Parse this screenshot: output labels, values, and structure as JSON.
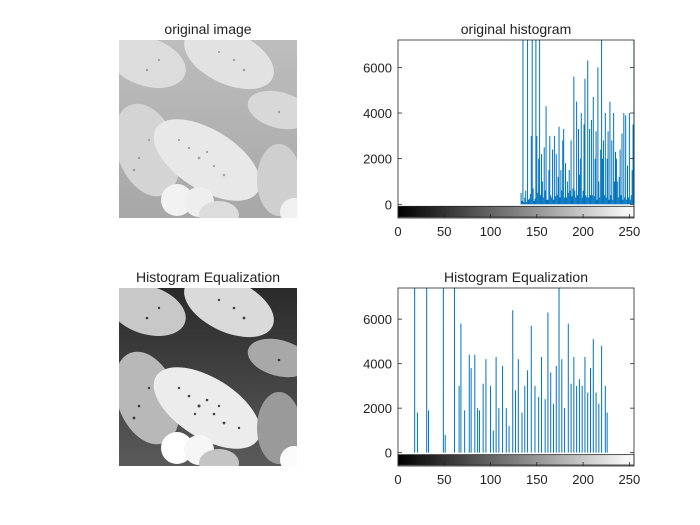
{
  "colors": {
    "background": "#ffffff",
    "histogram_line": "#0072bd",
    "axis": "#262626",
    "image_panel_top": "#b4b4b4",
    "image_panel_bottom": "#8a8a8a",
    "image_blob_top": "#dedede",
    "image_blob_bottom": "#eaeaea",
    "image_speck": "#3a3a3a"
  },
  "panels": {
    "original_image": {
      "title": "original image",
      "image": "pollen-grains-photo-low-contrast"
    },
    "equalized_image": {
      "title": "Histogram Equalization",
      "image": "pollen-grains-photo-equalized"
    }
  },
  "chart_data": [
    {
      "type": "bar",
      "title": "original histogram",
      "xlabel": "",
      "ylabel": "",
      "xlim": [
        0,
        255
      ],
      "ylim": [
        -600,
        7200
      ],
      "grid": false,
      "x_ticks": [
        0,
        50,
        100,
        150,
        200,
        250
      ],
      "y_ticks": [
        0,
        2000,
        4000,
        6000
      ],
      "colorbar": "grayscale 0-255 under x axis",
      "bins": [
        [
          133,
          500
        ],
        [
          134,
          150
        ],
        [
          135,
          7200
        ],
        [
          136,
          100
        ],
        [
          137,
          300
        ],
        [
          138,
          600
        ],
        [
          139,
          100
        ],
        [
          140,
          7200
        ],
        [
          141,
          200
        ],
        [
          142,
          250
        ],
        [
          143,
          450
        ],
        [
          144,
          3000
        ],
        [
          145,
          7200
        ],
        [
          146,
          700
        ],
        [
          147,
          150
        ],
        [
          148,
          250
        ],
        [
          149,
          7200
        ],
        [
          150,
          3000
        ],
        [
          151,
          500
        ],
        [
          152,
          2000
        ],
        [
          153,
          7200
        ],
        [
          154,
          400
        ],
        [
          155,
          2200
        ],
        [
          156,
          1000
        ],
        [
          157,
          300
        ],
        [
          158,
          2500
        ],
        [
          159,
          600
        ],
        [
          160,
          4300
        ],
        [
          161,
          200
        ],
        [
          162,
          200
        ],
        [
          163,
          1500
        ],
        [
          164,
          3000
        ],
        [
          165,
          400
        ],
        [
          166,
          300
        ],
        [
          167,
          2400
        ],
        [
          168,
          200
        ],
        [
          169,
          3000
        ],
        [
          170,
          350
        ],
        [
          171,
          2200
        ],
        [
          172,
          400
        ],
        [
          173,
          1200
        ],
        [
          174,
          3400
        ],
        [
          175,
          300
        ],
        [
          176,
          1500
        ],
        [
          177,
          600
        ],
        [
          178,
          2800
        ],
        [
          179,
          3300
        ],
        [
          180,
          300
        ],
        [
          181,
          1800
        ],
        [
          182,
          300
        ],
        [
          183,
          1000
        ],
        [
          184,
          500
        ],
        [
          185,
          1500
        ],
        [
          186,
          600
        ],
        [
          187,
          2800
        ],
        [
          188,
          350
        ],
        [
          189,
          700
        ],
        [
          190,
          5600
        ],
        [
          191,
          600
        ],
        [
          192,
          300
        ],
        [
          193,
          4500
        ],
        [
          194,
          400
        ],
        [
          195,
          3300
        ],
        [
          196,
          1300
        ],
        [
          197,
          2000
        ],
        [
          198,
          4000
        ],
        [
          199,
          300
        ],
        [
          200,
          600
        ],
        [
          201,
          3500
        ],
        [
          202,
          5500
        ],
        [
          203,
          400
        ],
        [
          204,
          300
        ],
        [
          205,
          6300
        ],
        [
          206,
          300
        ],
        [
          207,
          3300
        ],
        [
          208,
          400
        ],
        [
          209,
          3700
        ],
        [
          210,
          400
        ],
        [
          211,
          4700
        ],
        [
          212,
          350
        ],
        [
          213,
          2000
        ],
        [
          214,
          3200
        ],
        [
          215,
          200
        ],
        [
          216,
          6000
        ],
        [
          217,
          1000
        ],
        [
          218,
          300
        ],
        [
          219,
          2400
        ],
        [
          220,
          7200
        ],
        [
          221,
          2000
        ],
        [
          222,
          2800
        ],
        [
          223,
          400
        ],
        [
          224,
          4000
        ],
        [
          225,
          300
        ],
        [
          226,
          2000
        ],
        [
          227,
          3200
        ],
        [
          228,
          200
        ],
        [
          229,
          4500
        ],
        [
          230,
          400
        ],
        [
          231,
          2800
        ],
        [
          232,
          200
        ],
        [
          233,
          4000
        ],
        [
          234,
          1000
        ],
        [
          235,
          2300
        ],
        [
          236,
          2000
        ],
        [
          237,
          1000
        ],
        [
          238,
          300
        ],
        [
          239,
          1200
        ],
        [
          240,
          2400
        ],
        [
          241,
          400
        ],
        [
          242,
          3100
        ],
        [
          243,
          200
        ],
        [
          244,
          4000
        ],
        [
          245,
          300
        ],
        [
          246,
          3900
        ],
        [
          247,
          200
        ],
        [
          248,
          1700
        ],
        [
          249,
          300
        ],
        [
          250,
          4000
        ],
        [
          251,
          200
        ],
        [
          252,
          400
        ],
        [
          253,
          1500
        ],
        [
          254,
          3500
        ],
        [
          255,
          7200
        ]
      ]
    },
    {
      "type": "bar",
      "title": "Histogram Equalization",
      "xlabel": "",
      "ylabel": "",
      "xlim": [
        0,
        255
      ],
      "ylim": [
        -600,
        7400
      ],
      "grid": false,
      "x_ticks": [
        0,
        50,
        100,
        150,
        200,
        250
      ],
      "y_ticks": [
        0,
        2000,
        4000,
        6000
      ],
      "colorbar": "grayscale 0-255 under x axis",
      "bins": [
        [
          18,
          7400
        ],
        [
          21,
          1800
        ],
        [
          31,
          7400
        ],
        [
          33,
          1900
        ],
        [
          49,
          7400
        ],
        [
          51,
          800
        ],
        [
          61,
          7400
        ],
        [
          66,
          3000
        ],
        [
          68,
          5800
        ],
        [
          72,
          1900
        ],
        [
          77,
          4400
        ],
        [
          79,
          3800
        ],
        [
          83,
          4400
        ],
        [
          86,
          2000
        ],
        [
          88,
          1900
        ],
        [
          92,
          3100
        ],
        [
          95,
          4200
        ],
        [
          100,
          3000
        ],
        [
          103,
          1000
        ],
        [
          106,
          4300
        ],
        [
          109,
          2000
        ],
        [
          113,
          3900
        ],
        [
          117,
          2000
        ],
        [
          120,
          1200
        ],
        [
          124,
          6400
        ],
        [
          127,
          2800
        ],
        [
          130,
          4200
        ],
        [
          134,
          1800
        ],
        [
          137,
          3000
        ],
        [
          140,
          3700
        ],
        [
          144,
          5700
        ],
        [
          148,
          3000
        ],
        [
          152,
          2500
        ],
        [
          155,
          4300
        ],
        [
          159,
          2400
        ],
        [
          162,
          6300
        ],
        [
          165,
          3600
        ],
        [
          168,
          2200
        ],
        [
          171,
          3900
        ],
        [
          174,
          7400
        ],
        [
          177,
          4200
        ],
        [
          180,
          2000
        ],
        [
          184,
          5800
        ],
        [
          187,
          3100
        ],
        [
          190,
          4300
        ],
        [
          193,
          3000
        ],
        [
          196,
          3300
        ],
        [
          199,
          3000
        ],
        [
          202,
          4300
        ],
        [
          205,
          2700
        ],
        [
          208,
          3800
        ],
        [
          211,
          5100
        ],
        [
          214,
          2700
        ],
        [
          217,
          2200
        ],
        [
          220,
          4800
        ],
        [
          224,
          3000
        ],
        [
          226,
          1800
        ]
      ]
    }
  ]
}
